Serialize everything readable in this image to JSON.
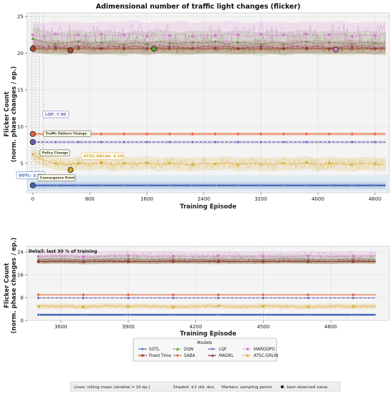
{
  "chart_data": [
    {
      "type": "line",
      "title": "Adimensional number of traffic light changes (flicker)",
      "xlabel": "Training Episode",
      "ylabel": "Flicker Count\n(norm. phase changes / ep.)",
      "xlim": [
        -80,
        5000
      ],
      "ylim": [
        1,
        25.5
      ],
      "xticks": [
        0,
        800,
        1600,
        2400,
        3200,
        4000,
        4800
      ],
      "yticks": [
        5,
        10,
        15,
        20,
        25
      ],
      "grid": true,
      "x": [
        0,
        160,
        320,
        480,
        640,
        800,
        960,
        1120,
        1280,
        1440,
        1600,
        1760,
        1920,
        2080,
        2240,
        2400,
        2560,
        2720,
        2880,
        3040,
        3200,
        3360,
        3520,
        3680,
        3840,
        4000,
        4160,
        4320,
        4480,
        4640,
        4800,
        4950
      ],
      "series": [
        {
          "name": "SOTL",
          "color": "#3f65b4",
          "values": [
            2.0,
            2.0,
            2.0,
            2.0,
            2.0,
            2.0,
            2.0,
            2.0,
            2.0,
            2.0,
            2.0,
            2.0,
            2.0,
            2.0,
            2.0,
            2.0,
            2.0,
            2.0,
            2.0,
            2.0,
            2.0,
            2.0,
            2.0,
            2.0,
            2.0,
            2.0,
            2.0,
            2.0,
            2.0,
            2.0,
            2.0,
            2.0
          ]
        },
        {
          "name": "Fixed Time",
          "color": "#b5472f",
          "values": [
            20.6,
            20.6,
            20.6,
            20.6,
            20.6,
            20.6,
            20.6,
            20.6,
            20.6,
            20.6,
            20.6,
            20.6,
            20.6,
            20.6,
            20.6,
            20.6,
            20.6,
            20.6,
            20.6,
            20.6,
            20.6,
            20.6,
            20.6,
            20.6,
            20.6,
            20.6,
            20.6,
            20.6,
            20.6,
            20.6,
            20.6,
            20.6
          ]
        },
        {
          "name": "DQN",
          "color": "#5aa02c",
          "values": [
            22.0,
            21.5,
            21.3,
            21.4,
            21.6,
            21.3,
            21.5,
            21.4,
            21.2,
            21.5,
            21.3,
            21.6,
            21.4,
            21.3,
            21.5,
            21.4,
            21.6,
            21.3,
            21.5,
            21.4,
            21.2,
            21.5,
            21.3,
            21.4,
            21.6,
            21.3,
            21.5,
            21.4,
            21.3,
            21.5,
            21.4,
            21.3
          ]
        },
        {
          "name": "SABA",
          "color": "#e8643c",
          "values": [
            9.0,
            9.0,
            9.0,
            9.0,
            9.0,
            9.0,
            9.0,
            9.0,
            9.0,
            9.0,
            9.0,
            9.0,
            9.0,
            9.0,
            9.0,
            9.0,
            9.0,
            9.0,
            9.0,
            9.0,
            9.0,
            9.0,
            9.0,
            9.0,
            9.0,
            9.0,
            9.0,
            9.0,
            9.0,
            9.0,
            9.0,
            9.0
          ]
        },
        {
          "name": "LQF",
          "color": "#6f5ab8",
          "values": [
            7.9,
            7.9,
            7.9,
            7.9,
            7.9,
            7.9,
            7.9,
            7.9,
            7.9,
            7.9,
            7.9,
            7.9,
            7.9,
            7.9,
            7.9,
            7.9,
            7.9,
            7.9,
            7.9,
            7.9,
            7.9,
            7.9,
            7.9,
            7.9,
            7.9,
            7.9,
            7.9,
            7.9,
            7.9,
            7.9,
            7.9,
            7.9
          ]
        },
        {
          "name": "MADRL",
          "color": "#8c3a3a",
          "values": [
            21.0,
            20.8,
            20.9,
            20.7,
            20.9,
            20.8,
            20.7,
            20.9,
            20.8,
            20.9,
            20.7,
            20.8,
            20.9,
            20.8,
            20.7,
            20.9,
            20.8,
            20.9,
            20.7,
            20.8,
            20.9,
            20.8,
            20.7,
            20.9,
            20.8,
            20.9,
            20.7,
            20.8,
            20.9,
            20.8,
            20.7,
            20.8
          ]
        },
        {
          "name": "MARDDPG",
          "color": "#d17ac9",
          "values": [
            22.5,
            22.3,
            22.6,
            22.4,
            22.5,
            22.3,
            22.6,
            22.4,
            22.5,
            22.7,
            22.3,
            22.5,
            22.4,
            22.6,
            22.3,
            22.5,
            22.4,
            22.6,
            22.5,
            22.3,
            22.6,
            22.4,
            22.5,
            22.3,
            22.6,
            22.4,
            22.5,
            22.6,
            22.3,
            22.5,
            22.4,
            22.6
          ]
        },
        {
          "name": "ATSC-DRLNI",
          "color": "#d9a21b",
          "values": [
            6.2,
            5.4,
            5.0,
            4.8,
            5.0,
            4.9,
            5.1,
            4.8,
            5.0,
            4.9,
            5.1,
            4.8,
            5.0,
            4.9,
            4.8,
            5.0,
            4.9,
            5.1,
            4.8,
            5.0,
            4.9,
            4.8,
            5.0,
            4.9,
            5.1,
            4.8,
            5.0,
            4.9,
            4.8,
            5.0,
            4.9,
            4.8
          ]
        }
      ],
      "best_points": [
        {
          "series": "Fixed Time",
          "x": 0,
          "y": 20.6
        },
        {
          "series": "Fixed Time",
          "x": 530,
          "y": 20.4
        },
        {
          "series": "DQN",
          "x": 1700,
          "y": 20.6
        },
        {
          "series": "MARDDPG",
          "x": 4250,
          "y": 20.5
        },
        {
          "series": "SABA",
          "x": 0,
          "y": 9.0
        },
        {
          "series": "LQF",
          "x": 0,
          "y": 7.9
        },
        {
          "series": "ATSC-DRLNI",
          "x": 530,
          "y": 4.1
        },
        {
          "series": "SOTL",
          "x": 0,
          "y": 2.0
        }
      ],
      "annotations": [
        {
          "text": "LQF: 7.90",
          "x": 160,
          "y": 11.5,
          "color": "#6f5ab8"
        },
        {
          "text": "ATSC-DRLNI: 4.10",
          "x": 700,
          "y": 5.8,
          "color": "#d9a21b"
        },
        {
          "text": "SOTL: 2.00",
          "x": -210,
          "y": 3.2,
          "color": "#3f65b4"
        },
        {
          "text": "Traffic Pattern Change",
          "x": 170,
          "y": 8.9,
          "color": "#333333"
        },
        {
          "text": "Policy Change",
          "x": 120,
          "y": 6.3,
          "color": "#333333"
        },
        {
          "text": "Convergence Point",
          "x": 90,
          "y": 2.9,
          "color": "#333333"
        }
      ]
    },
    {
      "type": "line",
      "title": "Detail: last 30 % of training",
      "xlabel": "Training Episode",
      "ylabel": "Flicker Count\n(norm. phase changes / ep.)",
      "xlim": [
        3450,
        5060
      ],
      "ylim": [
        0,
        26
      ],
      "xticks": [
        3600,
        3900,
        4200,
        4500,
        4800
      ],
      "yticks": [
        0,
        8,
        16,
        24
      ],
      "grid": true,
      "x": [
        3500,
        3600,
        3700,
        3800,
        3900,
        4000,
        4100,
        4200,
        4300,
        4400,
        4500,
        4600,
        4700,
        4800,
        4900,
        5000
      ],
      "series": [
        {
          "name": "SOTL",
          "values": [
            2.0,
            2.0,
            2.0,
            2.0,
            2.0,
            2.0,
            2.0,
            2.0,
            2.0,
            2.0,
            2.0,
            2.0,
            2.0,
            2.0,
            2.0,
            2.0
          ]
        },
        {
          "name": "Fixed Time",
          "values": [
            20.6,
            20.6,
            20.6,
            20.6,
            20.6,
            20.6,
            20.6,
            20.6,
            20.6,
            20.6,
            20.6,
            20.6,
            20.6,
            20.6,
            20.6,
            20.6
          ]
        },
        {
          "name": "DQN",
          "values": [
            21.3,
            21.5,
            21.2,
            21.4,
            21.6,
            21.3,
            21.5,
            21.4,
            21.2,
            21.5,
            21.3,
            21.6,
            21.4,
            21.3,
            21.5,
            21.4
          ]
        },
        {
          "name": "SABA",
          "values": [
            9.0,
            9.0,
            9.0,
            9.0,
            9.0,
            9.0,
            9.0,
            9.0,
            9.0,
            9.0,
            9.0,
            9.0,
            9.0,
            9.0,
            9.0,
            9.0
          ]
        },
        {
          "name": "LQF",
          "values": [
            7.9,
            7.9,
            7.9,
            7.9,
            7.9,
            7.9,
            7.9,
            7.9,
            7.9,
            7.9,
            7.9,
            7.9,
            7.9,
            7.9,
            7.9,
            7.9
          ]
        },
        {
          "name": "MADRL",
          "values": [
            20.8,
            20.9,
            20.7,
            20.9,
            20.8,
            20.7,
            20.9,
            20.8,
            20.9,
            20.7,
            20.8,
            20.9,
            20.8,
            20.7,
            20.9,
            20.8
          ]
        },
        {
          "name": "MARDDPG",
          "values": [
            22.4,
            22.6,
            22.3,
            22.5,
            22.7,
            22.4,
            22.5,
            22.3,
            22.6,
            22.4,
            22.5,
            22.3,
            22.6,
            22.4,
            22.5,
            22.6
          ]
        },
        {
          "name": "ATSC-DRLNI",
          "values": [
            4.9,
            5.0,
            4.8,
            5.1,
            4.9,
            5.0,
            4.8,
            4.9,
            5.1,
            4.8,
            5.0,
            4.9,
            4.8,
            5.0,
            4.9,
            5.0
          ]
        }
      ]
    }
  ],
  "legend": {
    "title": "Models",
    "entries": [
      "SOTL",
      "DQN",
      "LQF",
      "MARDDPG",
      "Fixed Time",
      "SABA",
      "MADRL",
      "ATSC-DRLNI"
    ]
  },
  "footer": {
    "lines_note": "Lines: rolling mean (window = 10 ep.)",
    "shaded_note": "Shaded: ±1 std. dev.",
    "markers_note": "Markers: sampling points",
    "best_note": ": best observed value"
  }
}
